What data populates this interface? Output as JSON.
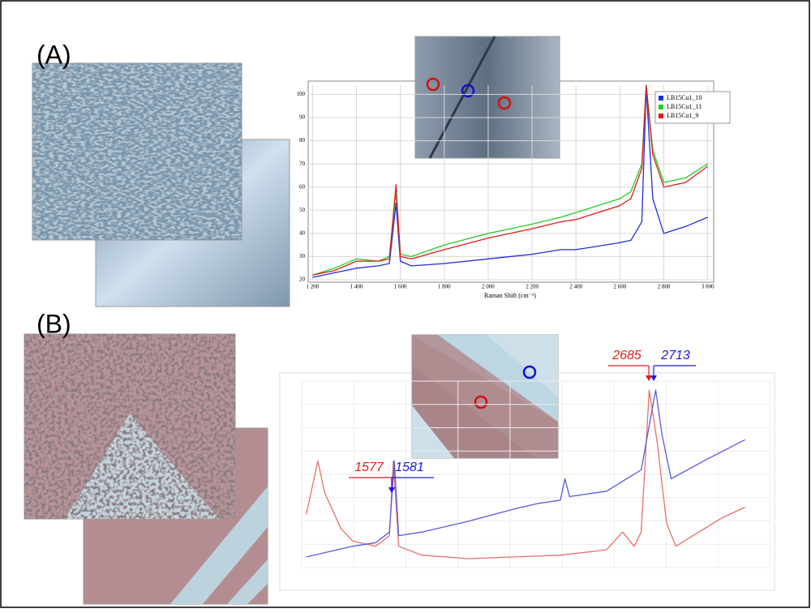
{
  "panels": [
    "(A)",
    "(B)"
  ],
  "chart_data": [
    {
      "type": "line",
      "x_label": "Raman Shift (cm⁻¹)",
      "x": [
        1200,
        1300,
        1400,
        1500,
        1550,
        1580,
        1600,
        1650,
        1800,
        2000,
        2200,
        2330,
        2400,
        2600,
        2650,
        2700,
        2720,
        2750,
        2800,
        2900,
        3000
      ],
      "series": [
        {
          "name": "LB15Cu1_10",
          "color": "#1f2de0",
          "values": [
            21,
            23,
            25,
            26,
            27,
            53,
            28,
            26,
            27,
            29,
            31,
            33,
            33,
            36,
            37,
            45,
            103,
            55,
            40,
            43,
            47
          ]
        },
        {
          "name": "LB15Cu1_11",
          "color": "#22cc22",
          "values": [
            22,
            25,
            29,
            28,
            30,
            58,
            31,
            30,
            35,
            40,
            44,
            47,
            49,
            55,
            58,
            70,
            104,
            76,
            62,
            64,
            70
          ]
        },
        {
          "name": "LB15Cu1_9",
          "color": "#e01b1b",
          "values": [
            22,
            24,
            28,
            28,
            29,
            61,
            30,
            29,
            33,
            38,
            42,
            45,
            46,
            52,
            55,
            68,
            104,
            74,
            60,
            62,
            69
          ]
        }
      ],
      "xlim": [
        1180,
        3020
      ],
      "ylim": [
        20,
        104
      ],
      "xticks": [
        {
          "value": 1200,
          "label": "1 200"
        },
        {
          "value": 1400,
          "label": "1 400"
        },
        {
          "value": 1600,
          "label": "1 600"
        },
        {
          "value": 1800,
          "label": "1 800"
        },
        {
          "value": 2000,
          "label": "2 000"
        },
        {
          "value": 2200,
          "label": "2 200"
        },
        {
          "value": 2400,
          "label": "2 400"
        },
        {
          "value": 2600,
          "label": "2 600"
        },
        {
          "value": 2800,
          "label": "2 800"
        },
        {
          "value": 3000,
          "label": "3 000"
        }
      ],
      "yticks": [
        20,
        30,
        40,
        50,
        60,
        70,
        80,
        90,
        100
      ],
      "grid": true
    },
    {
      "type": "line",
      "series": [
        {
          "color": "#e8706a",
          "x": [
            1200,
            1250,
            1280,
            1350,
            1400,
            1500,
            1560,
            1577,
            1600,
            1700,
            1900,
            2100,
            2300,
            2500,
            2570,
            2620,
            2650,
            2685,
            2720,
            2760,
            2800,
            2900,
            3000,
            3100
          ],
          "values": [
            30,
            60,
            42,
            22,
            15,
            12,
            18,
            60,
            12,
            7,
            5,
            6,
            7,
            10,
            20,
            12,
            20,
            100,
            70,
            25,
            12,
            20,
            28,
            34
          ]
        },
        {
          "color": "#5a5ae0",
          "x": [
            1200,
            1300,
            1400,
            1500,
            1560,
            1581,
            1600,
            1700,
            1900,
            2100,
            2200,
            2300,
            2320,
            2340,
            2500,
            2650,
            2713,
            2740,
            2780,
            2850,
            2950,
            3100
          ],
          "values": [
            6,
            9,
            12,
            14,
            20,
            60,
            18,
            20,
            26,
            33,
            36,
            38,
            50,
            40,
            43,
            55,
            100,
            75,
            50,
            55,
            62,
            72
          ]
        }
      ],
      "xlim": [
        1180,
        3210
      ],
      "ylim": [
        0,
        105
      ],
      "grid": true,
      "annotations": [
        {
          "text": "1577",
          "color": "#e31a1c"
        },
        {
          "text": "1581",
          "color": "#1a1ae3"
        },
        {
          "text": "2685",
          "color": "#e31a1c"
        },
        {
          "text": "2713",
          "color": "#1a1ae3"
        }
      ]
    }
  ]
}
